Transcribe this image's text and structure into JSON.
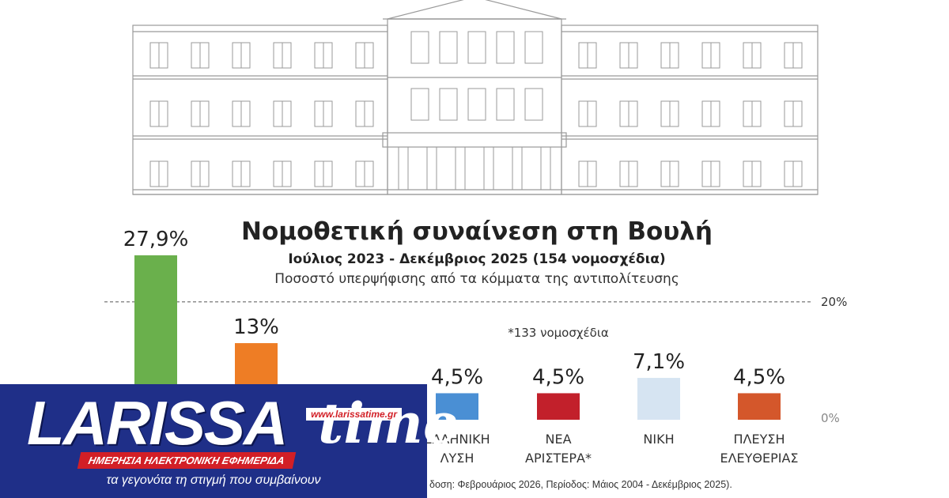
{
  "chart_data": {
    "type": "bar",
    "title": "Νομοθετική συναίνεση στη Βουλή",
    "subtitle": "Ιούλιος 2023 - Δεκέμβριος 2025 (154 νομοσχέδια)",
    "description": "Ποσοστό υπερψήφισης από τα κόμματα της αντιπολίτευσης",
    "reference_line": {
      "value": 20,
      "label": "20%"
    },
    "baseline_label": "0%",
    "annotation": "*133 νομοσχέδια",
    "ylim": [
      0,
      30
    ],
    "grid": false,
    "categories": [
      "",
      "",
      "",
      "",
      "ΕΛΛΗΝΙΚΗ ΛΥΣΗ",
      "ΝΕΑ ΑΡΙΣΤΕΡΑ*",
      "ΝΙΚΗ",
      "ΠΛΕΥΣΗ ΕΛΕΥΘΕΡΙΑΣ"
    ],
    "values": [
      27.9,
      13,
      null,
      null,
      4.5,
      4.5,
      7.1,
      4.5
    ],
    "value_labels": [
      "27,9%",
      "13%",
      "",
      "",
      "4,5%",
      "4,5%",
      "7,1%",
      "4,5%"
    ],
    "colors": [
      "#6ab04c",
      "#ee7d25",
      "#cccccc",
      "#cccccc",
      "#4a8fd4",
      "#c2202b",
      "#d6e4f2",
      "#d4572b"
    ]
  },
  "source_text": "δοση: Φεβρουάριος 2026, Περίοδος: Μάιος 2004 - Δεκέμβριος 2025).",
  "logo": {
    "name": "LARISSA",
    "name_suffix": "time",
    "url": "www.larissatime.gr",
    "strip": "ΗΜΕΡΗΣΙΑ ΗΛΕΚΤΡΟΝΙΚΗ ΕΦΗΜΕΡΙΔΑ",
    "slogan": "τα γεγονότα τη στιγμή που συμβαίνουν"
  },
  "colors": {
    "logo_blue": "#1f2f88",
    "logo_red": "#d21f26",
    "ink": "#222222"
  }
}
